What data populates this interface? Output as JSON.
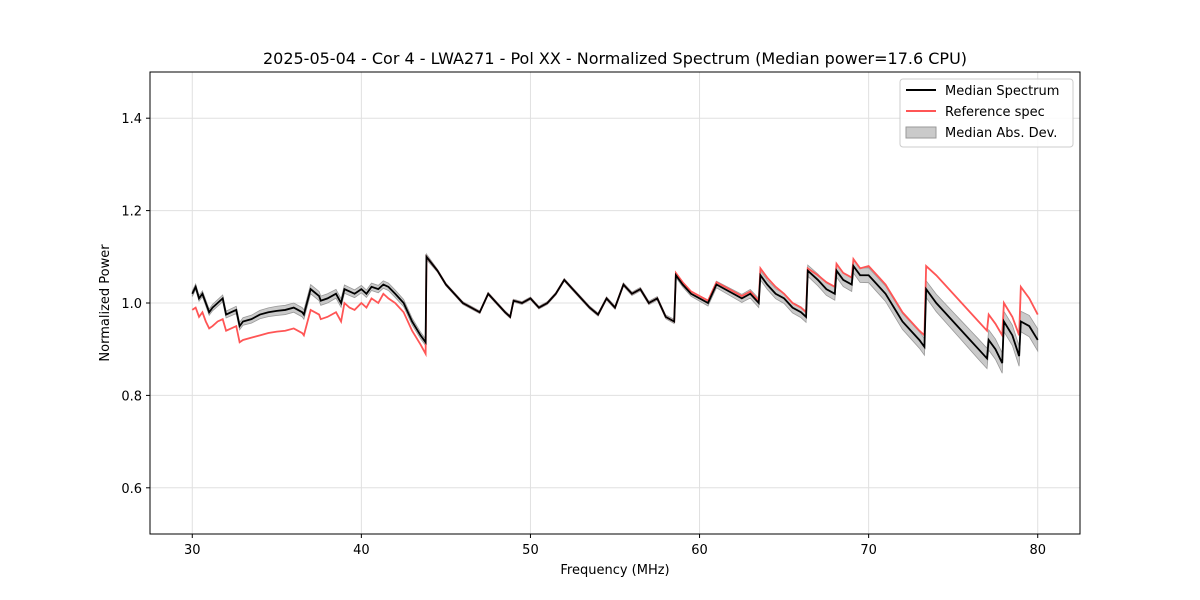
{
  "chart_data": {
    "type": "line",
    "title": "2025-05-04 - Cor 4 - LWA271 - Pol XX - Normalized Spectrum (Median power=17.6 CPU)",
    "xlabel": "Frequency (MHz)",
    "ylabel": "Normalized Power",
    "xlim": [
      27.5,
      82.5
    ],
    "ylim": [
      0.5,
      1.5
    ],
    "xticks": [
      30,
      40,
      50,
      60,
      70,
      80
    ],
    "yticks": [
      0.6,
      0.8,
      1.0,
      1.2,
      1.4
    ],
    "xtick_labels": [
      "30",
      "40",
      "50",
      "60",
      "70",
      "80"
    ],
    "ytick_labels": [
      "0.6",
      "0.8",
      "1.0",
      "1.2",
      "1.4"
    ],
    "grid": true,
    "legend_position": "top-right",
    "legend": [
      "Median Spectrum",
      "Reference spec",
      "Median Abs. Dev."
    ],
    "colors": {
      "median": "#000000",
      "reference": "#ff5555",
      "mad_fill": "#b3b3b3",
      "grid": "#e0e0e0"
    },
    "series": [
      {
        "name": "Median Spectrum",
        "x": [
          30.0,
          30.2,
          30.4,
          30.6,
          30.8,
          31.0,
          31.2,
          31.5,
          31.8,
          32.0,
          32.3,
          32.6,
          32.8,
          33.0,
          33.5,
          34.0,
          34.5,
          35.0,
          35.5,
          36.0,
          36.5,
          36.6,
          37.0,
          37.5,
          37.6,
          38.0,
          38.5,
          38.8,
          39.0,
          39.3,
          39.6,
          40.0,
          40.3,
          40.6,
          41.0,
          41.3,
          41.6,
          42.0,
          42.5,
          43.0,
          43.5,
          43.8,
          43.85,
          44.5,
          45.0,
          45.5,
          46.0,
          46.5,
          47.0,
          47.5,
          48.0,
          48.5,
          48.8,
          49.0,
          49.5,
          50.0,
          50.5,
          51.0,
          51.5,
          52.0,
          52.5,
          53.0,
          53.5,
          54.0,
          54.5,
          55.0,
          55.5,
          56.0,
          56.5,
          57.0,
          57.5,
          58.0,
          58.5,
          58.6,
          59.0,
          59.5,
          60.0,
          60.5,
          61.0,
          61.5,
          62.0,
          62.5,
          63.0,
          63.5,
          63.6,
          64.0,
          64.5,
          65.0,
          65.5,
          66.0,
          66.3,
          66.4,
          67.0,
          67.5,
          68.0,
          68.1,
          68.5,
          69.0,
          69.1,
          69.5,
          70.0,
          70.5,
          71.0,
          71.5,
          72.0,
          72.5,
          73.0,
          73.3,
          73.4,
          74.0,
          74.5,
          75.0,
          75.5,
          76.0,
          76.5,
          77.0,
          77.1,
          77.5,
          77.9,
          78.0,
          78.5,
          78.9,
          79.0,
          79.5,
          80.0
        ],
        "values": [
          1.02,
          1.035,
          1.01,
          1.02,
          1.0,
          0.98,
          0.99,
          1.0,
          1.01,
          0.975,
          0.98,
          0.985,
          0.95,
          0.96,
          0.965,
          0.975,
          0.98,
          0.983,
          0.985,
          0.99,
          0.98,
          0.975,
          1.03,
          1.015,
          1.005,
          1.01,
          1.02,
          1.0,
          1.03,
          1.025,
          1.02,
          1.03,
          1.02,
          1.035,
          1.03,
          1.04,
          1.035,
          1.02,
          1.0,
          0.96,
          0.93,
          0.915,
          1.1,
          1.07,
          1.04,
          1.02,
          1.0,
          0.99,
          0.98,
          1.02,
          1.0,
          0.98,
          0.97,
          1.005,
          1.0,
          1.01,
          0.99,
          1.0,
          1.02,
          1.05,
          1.03,
          1.01,
          0.99,
          0.975,
          1.01,
          0.99,
          1.04,
          1.02,
          1.03,
          1.0,
          1.01,
          0.97,
          0.96,
          1.06,
          1.04,
          1.02,
          1.01,
          1.0,
          1.04,
          1.03,
          1.02,
          1.01,
          1.02,
          1.0,
          1.06,
          1.04,
          1.02,
          1.01,
          0.99,
          0.98,
          0.97,
          1.07,
          1.05,
          1.03,
          1.02,
          1.07,
          1.05,
          1.04,
          1.08,
          1.06,
          1.06,
          1.04,
          1.02,
          0.99,
          0.96,
          0.94,
          0.92,
          0.905,
          1.03,
          1.0,
          0.98,
          0.96,
          0.94,
          0.92,
          0.9,
          0.88,
          0.92,
          0.9,
          0.87,
          0.96,
          0.93,
          0.885,
          0.96,
          0.95,
          0.92
        ]
      },
      {
        "name": "Reference spec",
        "x": [
          30.0,
          30.2,
          30.4,
          30.6,
          30.8,
          31.0,
          31.2,
          31.5,
          31.8,
          32.0,
          32.3,
          32.6,
          32.8,
          33.0,
          33.5,
          34.0,
          34.5,
          35.0,
          35.5,
          36.0,
          36.5,
          36.6,
          37.0,
          37.5,
          37.6,
          38.0,
          38.5,
          38.8,
          39.0,
          39.3,
          39.6,
          40.0,
          40.3,
          40.6,
          41.0,
          41.3,
          41.6,
          42.0,
          42.5,
          43.0,
          43.5,
          43.8,
          43.85,
          44.5,
          45.0,
          45.5,
          46.0,
          46.5,
          47.0,
          47.5,
          48.0,
          48.5,
          48.8,
          49.0,
          49.5,
          50.0,
          50.5,
          51.0,
          51.5,
          52.0,
          52.5,
          53.0,
          53.5,
          54.0,
          54.5,
          55.0,
          55.5,
          56.0,
          56.5,
          57.0,
          57.5,
          58.0,
          58.5,
          58.6,
          59.0,
          59.5,
          60.0,
          60.5,
          61.0,
          61.5,
          62.0,
          62.5,
          63.0,
          63.5,
          63.6,
          64.0,
          64.5,
          65.0,
          65.5,
          66.0,
          66.3,
          66.4,
          67.0,
          67.5,
          68.0,
          68.1,
          68.5,
          69.0,
          69.1,
          69.5,
          70.0,
          70.5,
          71.0,
          71.5,
          72.0,
          72.5,
          73.0,
          73.3,
          73.4,
          74.0,
          74.5,
          75.0,
          75.5,
          76.0,
          76.5,
          77.0,
          77.1,
          77.5,
          77.9,
          78.0,
          78.5,
          78.9,
          79.0,
          79.5,
          80.0
        ],
        "values": [
          0.985,
          0.99,
          0.97,
          0.98,
          0.96,
          0.945,
          0.95,
          0.96,
          0.965,
          0.94,
          0.945,
          0.95,
          0.915,
          0.92,
          0.925,
          0.93,
          0.935,
          0.938,
          0.94,
          0.945,
          0.935,
          0.93,
          0.985,
          0.975,
          0.965,
          0.97,
          0.98,
          0.96,
          1.0,
          0.99,
          0.985,
          1.0,
          0.99,
          1.01,
          1.0,
          1.02,
          1.01,
          1.0,
          0.98,
          0.94,
          0.91,
          0.89,
          1.1,
          1.07,
          1.04,
          1.02,
          1.0,
          0.99,
          0.98,
          1.02,
          1.0,
          0.98,
          0.97,
          1.005,
          1.0,
          1.01,
          0.99,
          1.0,
          1.02,
          1.05,
          1.03,
          1.01,
          0.99,
          0.975,
          1.01,
          0.99,
          1.04,
          1.02,
          1.03,
          1.0,
          1.01,
          0.97,
          0.96,
          1.065,
          1.045,
          1.025,
          1.015,
          1.005,
          1.045,
          1.035,
          1.025,
          1.015,
          1.025,
          1.005,
          1.075,
          1.055,
          1.035,
          1.02,
          1.0,
          0.99,
          0.98,
          1.075,
          1.06,
          1.045,
          1.035,
          1.085,
          1.065,
          1.055,
          1.095,
          1.075,
          1.08,
          1.06,
          1.04,
          1.01,
          0.98,
          0.96,
          0.94,
          0.93,
          1.08,
          1.06,
          1.04,
          1.02,
          1.0,
          0.98,
          0.96,
          0.94,
          0.975,
          0.955,
          0.93,
          1.0,
          0.97,
          0.93,
          1.035,
          1.01,
          0.975
        ]
      }
    ],
    "mad_band": {
      "name": "Median Abs. Dev.",
      "x": [
        30.0,
        32.8,
        35.0,
        36.5,
        38.0,
        40.0,
        42.0,
        43.8,
        44.0,
        52.0,
        58.0,
        60.0,
        63.6,
        66.3,
        68.0,
        70.0,
        73.3,
        75.0,
        76.5,
        77.9,
        78.9,
        80.0
      ],
      "halfwidth": [
        0.006,
        0.008,
        0.01,
        0.01,
        0.01,
        0.008,
        0.008,
        0.007,
        0.003,
        0.003,
        0.004,
        0.006,
        0.01,
        0.012,
        0.014,
        0.016,
        0.018,
        0.02,
        0.022,
        0.022,
        0.022,
        0.024
      ]
    }
  }
}
